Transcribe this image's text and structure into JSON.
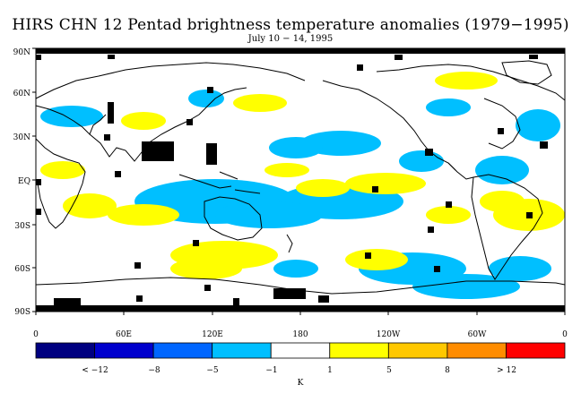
{
  "title": "HIRS CHN 12 Pentad brightness temperature anomalies (1979−1995)",
  "subtitle": "July 10 − 14, 1995",
  "lat_labels": [
    "90N",
    "60N",
    "30N",
    "EQ",
    "30S",
    "60S",
    "90S"
  ],
  "lon_labels": [
    "0",
    "60E",
    "120E",
    "180",
    "120W",
    "60W",
    "0"
  ],
  "colorbar": {
    "colors": [
      "#000080",
      "#0000cd",
      "#0066ff",
      "#00bfff",
      "#ffffff",
      "#ffff00",
      "#ffc800",
      "#ff8c00",
      "#ff0000"
    ],
    "labels": [
      "< −12",
      "−8",
      "−5",
      "−1",
      "1",
      "5",
      "8",
      "> 12"
    ],
    "unit": "K"
  },
  "colors": {
    "cool_strong": "#0066ff",
    "cool": "#00bfff",
    "warm": "#ffff00",
    "missing": "#000000",
    "background": "#ffffff"
  }
}
